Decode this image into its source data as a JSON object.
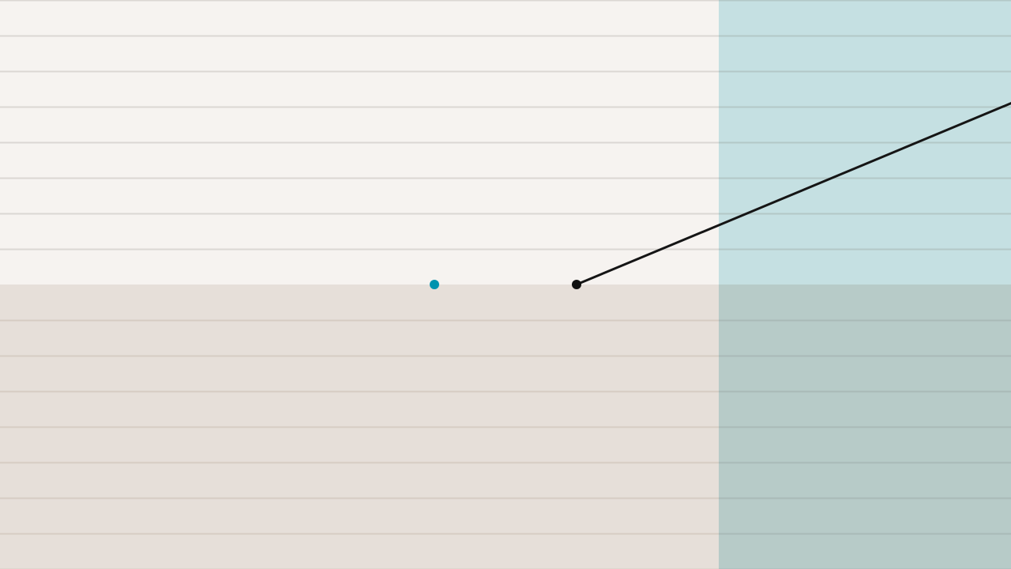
{
  "colors": {
    "upper_area": "#f6f3f0",
    "lower_area": "#e6dfd9",
    "target_zone_upper": "#c5e0e2",
    "target_zone_lower": "#b7cbc8",
    "grid_line_upper": "#dbd7d3",
    "grid_line_lower": "#d6ccc3",
    "grid_line_zone_upper": "#b3c8c7",
    "grid_line_zone_lower": "#a9bab7",
    "player_dot": "#0093ae",
    "anchor_dot": "#111111",
    "tether_line": "#151515"
  },
  "icons": {
    "player": "teal-dot-icon",
    "anchor": "black-dot-icon"
  }
}
